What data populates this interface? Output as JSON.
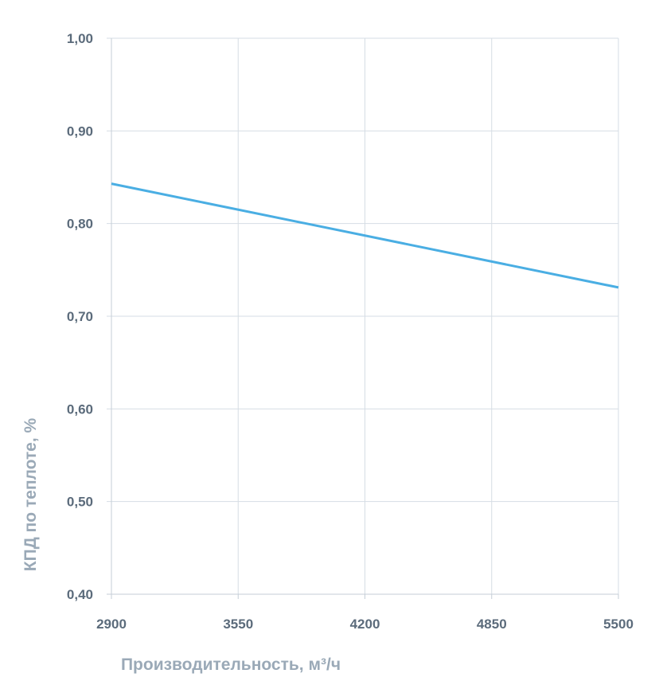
{
  "chart_data": {
    "type": "line",
    "title": "",
    "xlabel": "Производительность, м³/ч",
    "ylabel": "КПД по теплоте, %",
    "x_ticks": [
      "2900",
      "3550",
      "4200",
      "4850",
      "5500"
    ],
    "y_ticks": [
      "1,00",
      "0,90",
      "0,80",
      "0,70",
      "0,60",
      "0,50",
      "0,40"
    ],
    "xlim": [
      2900,
      5500
    ],
    "ylim": [
      0.4,
      1.0
    ],
    "grid": true,
    "legend": "none",
    "series": [
      {
        "color": "#4aaee3",
        "x": [
          2900,
          5500
        ],
        "y": [
          0.843,
          0.731
        ]
      }
    ]
  }
}
